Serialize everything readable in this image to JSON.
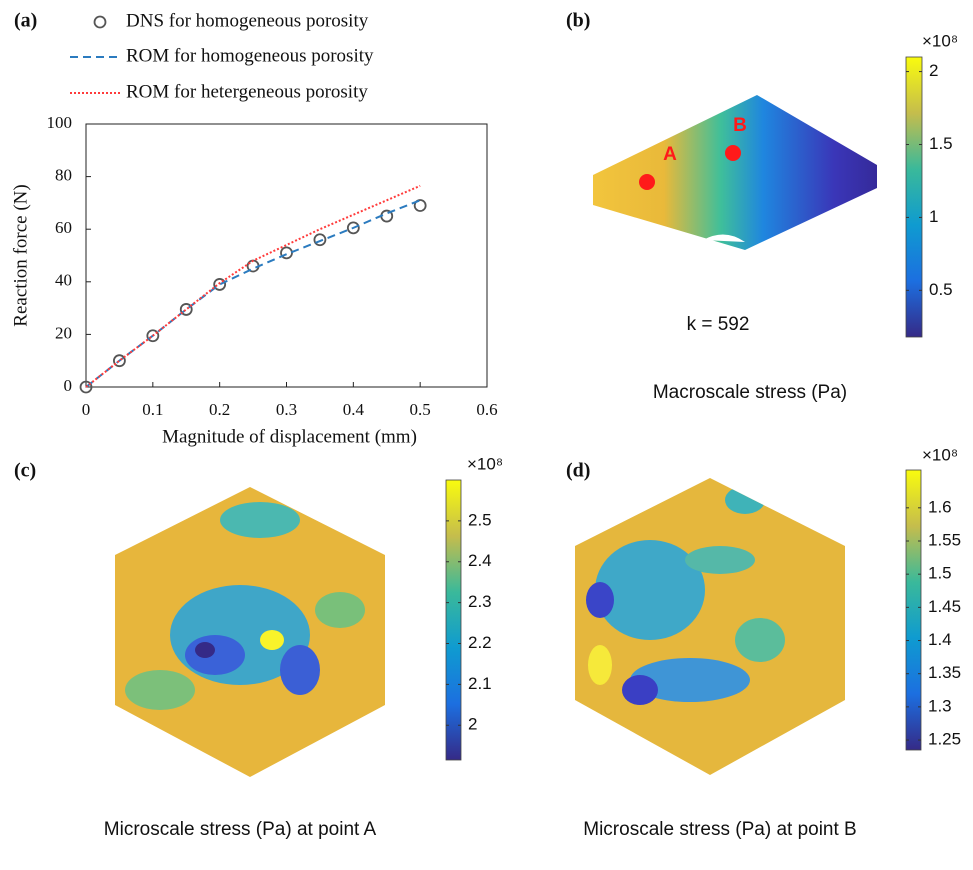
{
  "chart_data": [
    {
      "type": "line",
      "panel_label": "(a)",
      "xlabel": "Magnitude of displacement (mm)",
      "ylabel": "Reaction force (N)",
      "x": [
        0,
        0.05,
        0.1,
        0.15,
        0.2,
        0.25,
        0.3,
        0.35,
        0.4,
        0.45,
        0.5
      ],
      "series": [
        {
          "name": "DNS for homogeneous porosity",
          "color": "#555555",
          "style": "markers",
          "values": [
            0,
            10,
            19.5,
            29.5,
            39,
            46,
            51,
            56,
            60.5,
            65,
            69
          ]
        },
        {
          "name": "ROM for homogeneous porosity",
          "color": "#2b7bbf",
          "style": "dashed",
          "values": [
            0,
            10,
            19.5,
            29.5,
            39,
            45,
            50.5,
            55.5,
            60.5,
            66,
            71
          ]
        },
        {
          "name": "ROM for hetergeneous porosity",
          "color": "#ff3b3b",
          "style": "dotted",
          "values": [
            0,
            10,
            19.5,
            29.5,
            39.5,
            48,
            54,
            60,
            65.5,
            71,
            76.5
          ]
        }
      ],
      "xlim": [
        0,
        0.6
      ],
      "xticks": [
        0,
        0.1,
        0.2,
        0.3,
        0.4,
        0.5,
        0.6
      ],
      "ylim": [
        0,
        100
      ],
      "yticks": [
        0,
        20,
        40,
        60,
        80,
        100
      ]
    },
    {
      "type": "colorbar",
      "panel_label": "(b)",
      "scale_label": "×10⁸",
      "ylim": [
        0.18,
        2.1
      ],
      "yticks": [
        0.5,
        1,
        1.5,
        2
      ],
      "annotations": [
        "A",
        "B",
        "k = 592"
      ],
      "caption": "Macroscale stress (Pa)"
    },
    {
      "type": "colorbar",
      "panel_label": "(c)",
      "scale_label": "×10⁸",
      "ylim": [
        1.915,
        2.6
      ],
      "yticks": [
        2,
        2.1,
        2.2,
        2.3,
        2.4,
        2.5
      ],
      "caption": "Microscale stress (Pa) at point A"
    },
    {
      "type": "colorbar",
      "panel_label": "(d)",
      "scale_label": "×10⁸",
      "ylim": [
        1.235,
        1.657
      ],
      "yticks": [
        1.25,
        1.3,
        1.35,
        1.4,
        1.45,
        1.5,
        1.55,
        1.6
      ],
      "caption": "Microscale stress (Pa) at point B"
    }
  ]
}
